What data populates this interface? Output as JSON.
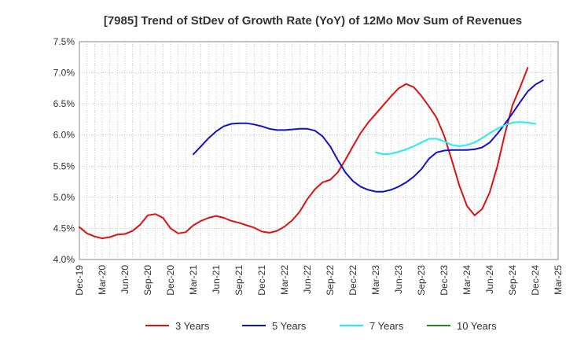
{
  "chart_data": {
    "type": "line",
    "title": "[7985]  Trend of StDev of Growth Rate (YoY) of 12Mo Mov Sum of Revenues",
    "xlabel": "",
    "ylabel": "",
    "ylim": [
      4.0,
      7.5
    ],
    "yticks": [
      "4.0%",
      "4.5%",
      "5.0%",
      "5.5%",
      "6.0%",
      "6.5%",
      "7.0%",
      "7.5%"
    ],
    "yticks_values": [
      4.0,
      4.5,
      5.0,
      5.5,
      6.0,
      6.5,
      7.0,
      7.5
    ],
    "xticks": [
      "Dec-19",
      "Mar-20",
      "Jun-20",
      "Sep-20",
      "Dec-20",
      "Mar-21",
      "Jun-21",
      "Sep-21",
      "Dec-21",
      "Mar-22",
      "Jun-22",
      "Sep-22",
      "Dec-22",
      "Mar-23",
      "Jun-23",
      "Sep-23",
      "Dec-23",
      "Mar-24",
      "Jun-24",
      "Sep-24",
      "Dec-24",
      "Mar-25"
    ],
    "grid": true,
    "legend_position": "bottom",
    "series": [
      {
        "name": "3 Years",
        "color": "#dd1111",
        "start_index": 0,
        "values": [
          4.52,
          4.42,
          4.37,
          4.34,
          4.36,
          4.4,
          4.41,
          4.46,
          4.56,
          4.71,
          4.73,
          4.67,
          4.5,
          4.42,
          4.44,
          4.55,
          4.62,
          4.67,
          4.7,
          4.67,
          4.62,
          4.59,
          4.55,
          4.51,
          4.45,
          4.43,
          4.46,
          4.53,
          4.63,
          4.77,
          4.97,
          5.13,
          5.24,
          5.28,
          5.4,
          5.6,
          5.82,
          6.03,
          6.2,
          6.34,
          6.48,
          6.62,
          6.75,
          6.82,
          6.77,
          6.63,
          6.46,
          6.28,
          5.99,
          5.6,
          5.19,
          4.86,
          4.71,
          4.81,
          5.08,
          5.5,
          6.02,
          6.48,
          6.77,
          7.08
        ]
      },
      {
        "name": "5 Years",
        "color": "#1111cc",
        "start_index": 15,
        "values": [
          5.69,
          5.82,
          5.95,
          6.06,
          6.14,
          6.18,
          6.19,
          6.19,
          6.17,
          6.14,
          6.1,
          6.08,
          6.08,
          6.09,
          6.1,
          6.1,
          6.07,
          5.98,
          5.82,
          5.6,
          5.4,
          5.26,
          5.17,
          5.12,
          5.09,
          5.09,
          5.12,
          5.17,
          5.24,
          5.33,
          5.45,
          5.62,
          5.72,
          5.75,
          5.76,
          5.76,
          5.76,
          5.77,
          5.8,
          5.88,
          6.02,
          6.18,
          6.35,
          6.53,
          6.7,
          6.81,
          6.88
        ]
      },
      {
        "name": "7 Years",
        "color": "#22eeee",
        "start_index": 39,
        "values": [
          5.72,
          5.69,
          5.7,
          5.73,
          5.77,
          5.82,
          5.88,
          5.94,
          5.94,
          5.9,
          5.84,
          5.82,
          5.84,
          5.88,
          5.95,
          6.03,
          6.1,
          6.16,
          6.2,
          6.21,
          6.2,
          6.18
        ]
      },
      {
        "name": "10 Years",
        "color": "#228822",
        "start_index": 0,
        "values": []
      }
    ]
  }
}
